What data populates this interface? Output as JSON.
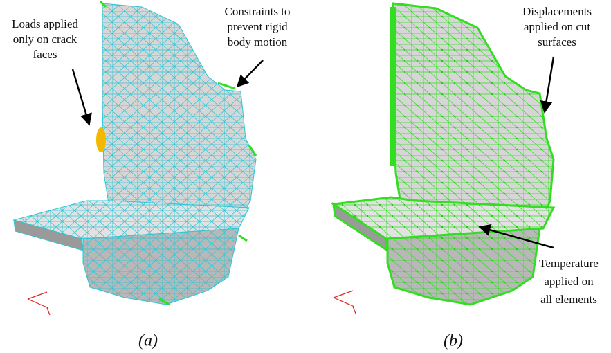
{
  "panels": [
    {
      "label": "(a)",
      "annotations": [
        {
          "lines": [
            "Loads applied",
            "only on crack",
            "faces"
          ]
        },
        {
          "lines": [
            "Constraints to",
            "prevent rigid",
            "body motion"
          ]
        }
      ]
    },
    {
      "label": "(b)",
      "annotations": [
        {
          "lines": [
            "Displacements",
            "applied on cut",
            "surfaces"
          ]
        },
        {
          "lines": [
            "Temperature",
            "applied on",
            "all elements"
          ]
        }
      ]
    }
  ]
}
